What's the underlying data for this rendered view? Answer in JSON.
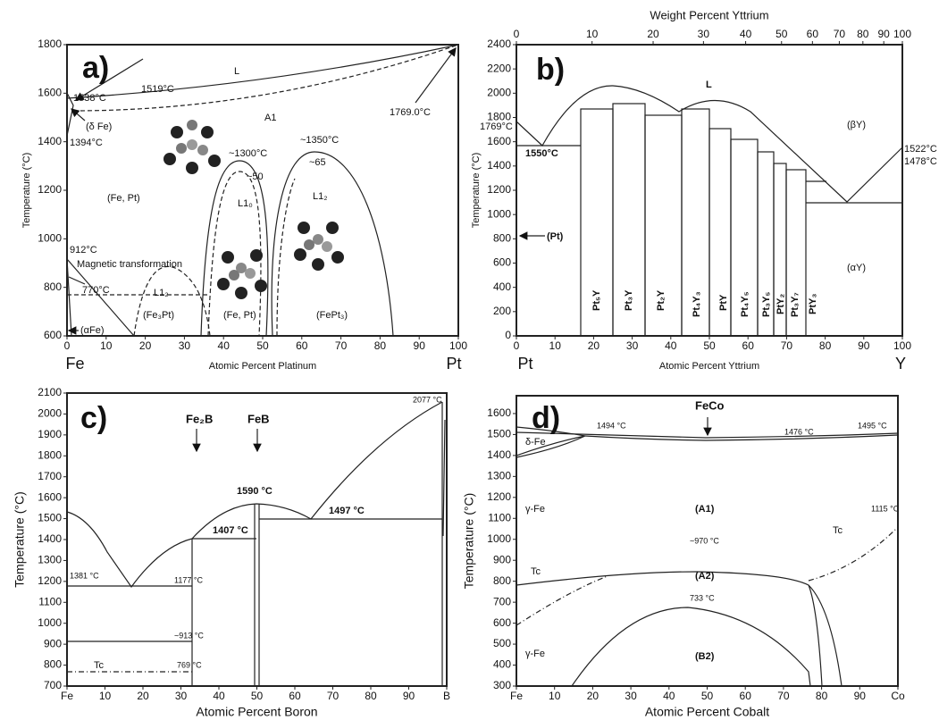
{
  "chart_data": [
    {
      "type": "line",
      "panel_label": "a)",
      "xlabel": "Atomic Percent Platinum",
      "ylabel": "Temperature (°C)",
      "xlim": [
        0,
        100
      ],
      "xticks": [
        0,
        10,
        20,
        30,
        40,
        50,
        60,
        70,
        80,
        90,
        100
      ],
      "ylim": [
        600,
        1800
      ],
      "yticks": [
        600,
        800,
        1000,
        1200,
        1400,
        1600,
        1800
      ],
      "end_labels": [
        "Fe",
        "Pt"
      ],
      "annotations": [
        "L",
        "1538°C",
        "1519°C",
        "(δ Fe)",
        "1394°C",
        "A1",
        "1769.0°C",
        "~1300°C",
        "~50",
        "~1350°C",
        "~65",
        "(Fe, Pt)",
        "L1₀",
        "L1₂",
        "912°C",
        "Magnetic transformation",
        "770°C",
        "L1₂",
        "(Fe₃Pt)",
        "(Fe, Pt)",
        "(FePt₃)",
        "(αFe)"
      ]
    },
    {
      "type": "line",
      "panel_label": "b)",
      "xlabel": "Atomic Percent Yttrium",
      "ylabel": "Temperature (°C)",
      "top_xlabel": "Weight Percent Yttrium",
      "top_xticks": [
        0,
        10,
        20,
        30,
        40,
        50,
        60,
        70,
        80,
        90,
        100
      ],
      "xlim": [
        0,
        100
      ],
      "xticks": [
        0,
        10,
        20,
        30,
        40,
        50,
        60,
        70,
        80,
        90,
        100
      ],
      "ylim": [
        0,
        2400
      ],
      "yticks": [
        0,
        200,
        400,
        600,
        800,
        1000,
        1200,
        1400,
        1600,
        1800,
        2000,
        2200,
        2400
      ],
      "end_labels": [
        "Pt",
        "Y"
      ],
      "annotations": [
        "L",
        "(βY)",
        "1769°C",
        "1550°C",
        "1522°C",
        "1478°C",
        "(Pt)",
        "(αY)"
      ],
      "compounds": [
        "Pt₅Y",
        "Pt₃Y",
        "Pt₂Y",
        "Pt₄Y₃",
        "PtY",
        "Pt₄Y₅",
        "Pt₃Y₅",
        "PtY₂",
        "Pt₃Y₇",
        "PtY₃"
      ]
    },
    {
      "type": "line",
      "panel_label": "c)",
      "xlabel": "Atomic Percent Boron",
      "ylabel": "Temperature (°C)",
      "xlim": [
        0,
        100
      ],
      "xticks": [
        {
          "value": 0,
          "label": "Fe"
        },
        10,
        20,
        30,
        40,
        50,
        60,
        70,
        80,
        90,
        {
          "value": 100,
          "label": "B"
        }
      ],
      "ylim": [
        700,
        2100
      ],
      "yticks": [
        700,
        800,
        900,
        1000,
        1100,
        1200,
        1300,
        1400,
        1500,
        1600,
        1700,
        1800,
        1900,
        2000,
        2100
      ],
      "annotations": [
        "Fe₂B",
        "FeB",
        "1590 °C",
        "1407 °C",
        "1497 °C",
        "2077 °C",
        "1381 °C",
        "1177 °C",
        "~913 °C",
        "Tc",
        "769 °C"
      ]
    },
    {
      "type": "line",
      "panel_label": "d)",
      "xlabel": "Atomic Percent Cobalt",
      "ylabel": "Temperature (°C)",
      "xlim": [
        0,
        100
      ],
      "xticks": [
        {
          "value": 0,
          "label": "Fe"
        },
        10,
        20,
        30,
        40,
        50,
        60,
        70,
        80,
        90,
        {
          "value": 100,
          "label": "Co"
        }
      ],
      "ylim": [
        300,
        1685
      ],
      "yticks": [
        300,
        400,
        500,
        600,
        700,
        800,
        900,
        1000,
        1100,
        1200,
        1300,
        1400,
        1500,
        1600
      ],
      "annotations": [
        "FeCo",
        "1494 °C",
        "1476 °C",
        "1495 °C",
        "δ-Fe",
        "γ-Fe",
        "(A1)",
        "1115 °C",
        "Tc",
        "~970 °C",
        "Tc",
        "(A2)",
        "733 °C",
        "γ-Fe",
        "(B2)"
      ]
    }
  ]
}
